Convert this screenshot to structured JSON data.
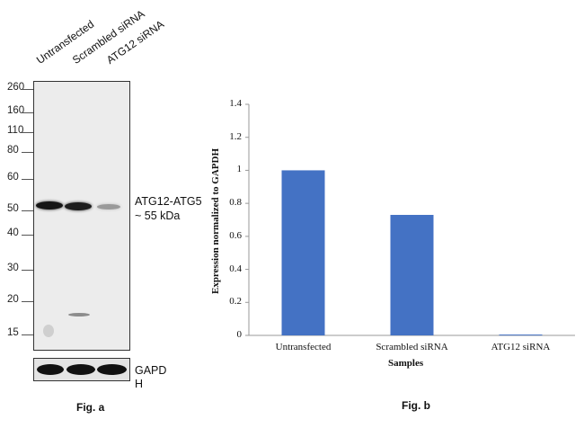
{
  "fig_a": {
    "lanes": [
      "Untransfected",
      "Scrambled siRNA",
      "ATG12 siRNA"
    ],
    "mw_markers": [
      "260",
      "160",
      "110",
      "80",
      "60",
      "50",
      "40",
      "30",
      "20",
      "15"
    ],
    "band_label_1": "ATG12-ATG5",
    "band_label_2": "~ 55 kDa",
    "loading_label_1": "GAPD",
    "loading_label_2": "H",
    "caption": "Fig. a"
  },
  "fig_b": {
    "caption": "Fig. b"
  },
  "chart_data": {
    "type": "bar",
    "title": "",
    "xlabel": "Samples",
    "ylabel": "Expression normalized to GAPDH",
    "categories": [
      "Untransfected",
      "Scrambled siRNA",
      "ATG12 siRNA"
    ],
    "values": [
      1.0,
      0.73,
      0.005
    ],
    "ylim": [
      0,
      1.4
    ],
    "yticks": [
      "0",
      "0.2",
      "0.4",
      "0.6",
      "0.8",
      "1",
      "1.2",
      "1.4"
    ],
    "grid": false,
    "legend": "none",
    "bar_color": "#4472c4"
  }
}
